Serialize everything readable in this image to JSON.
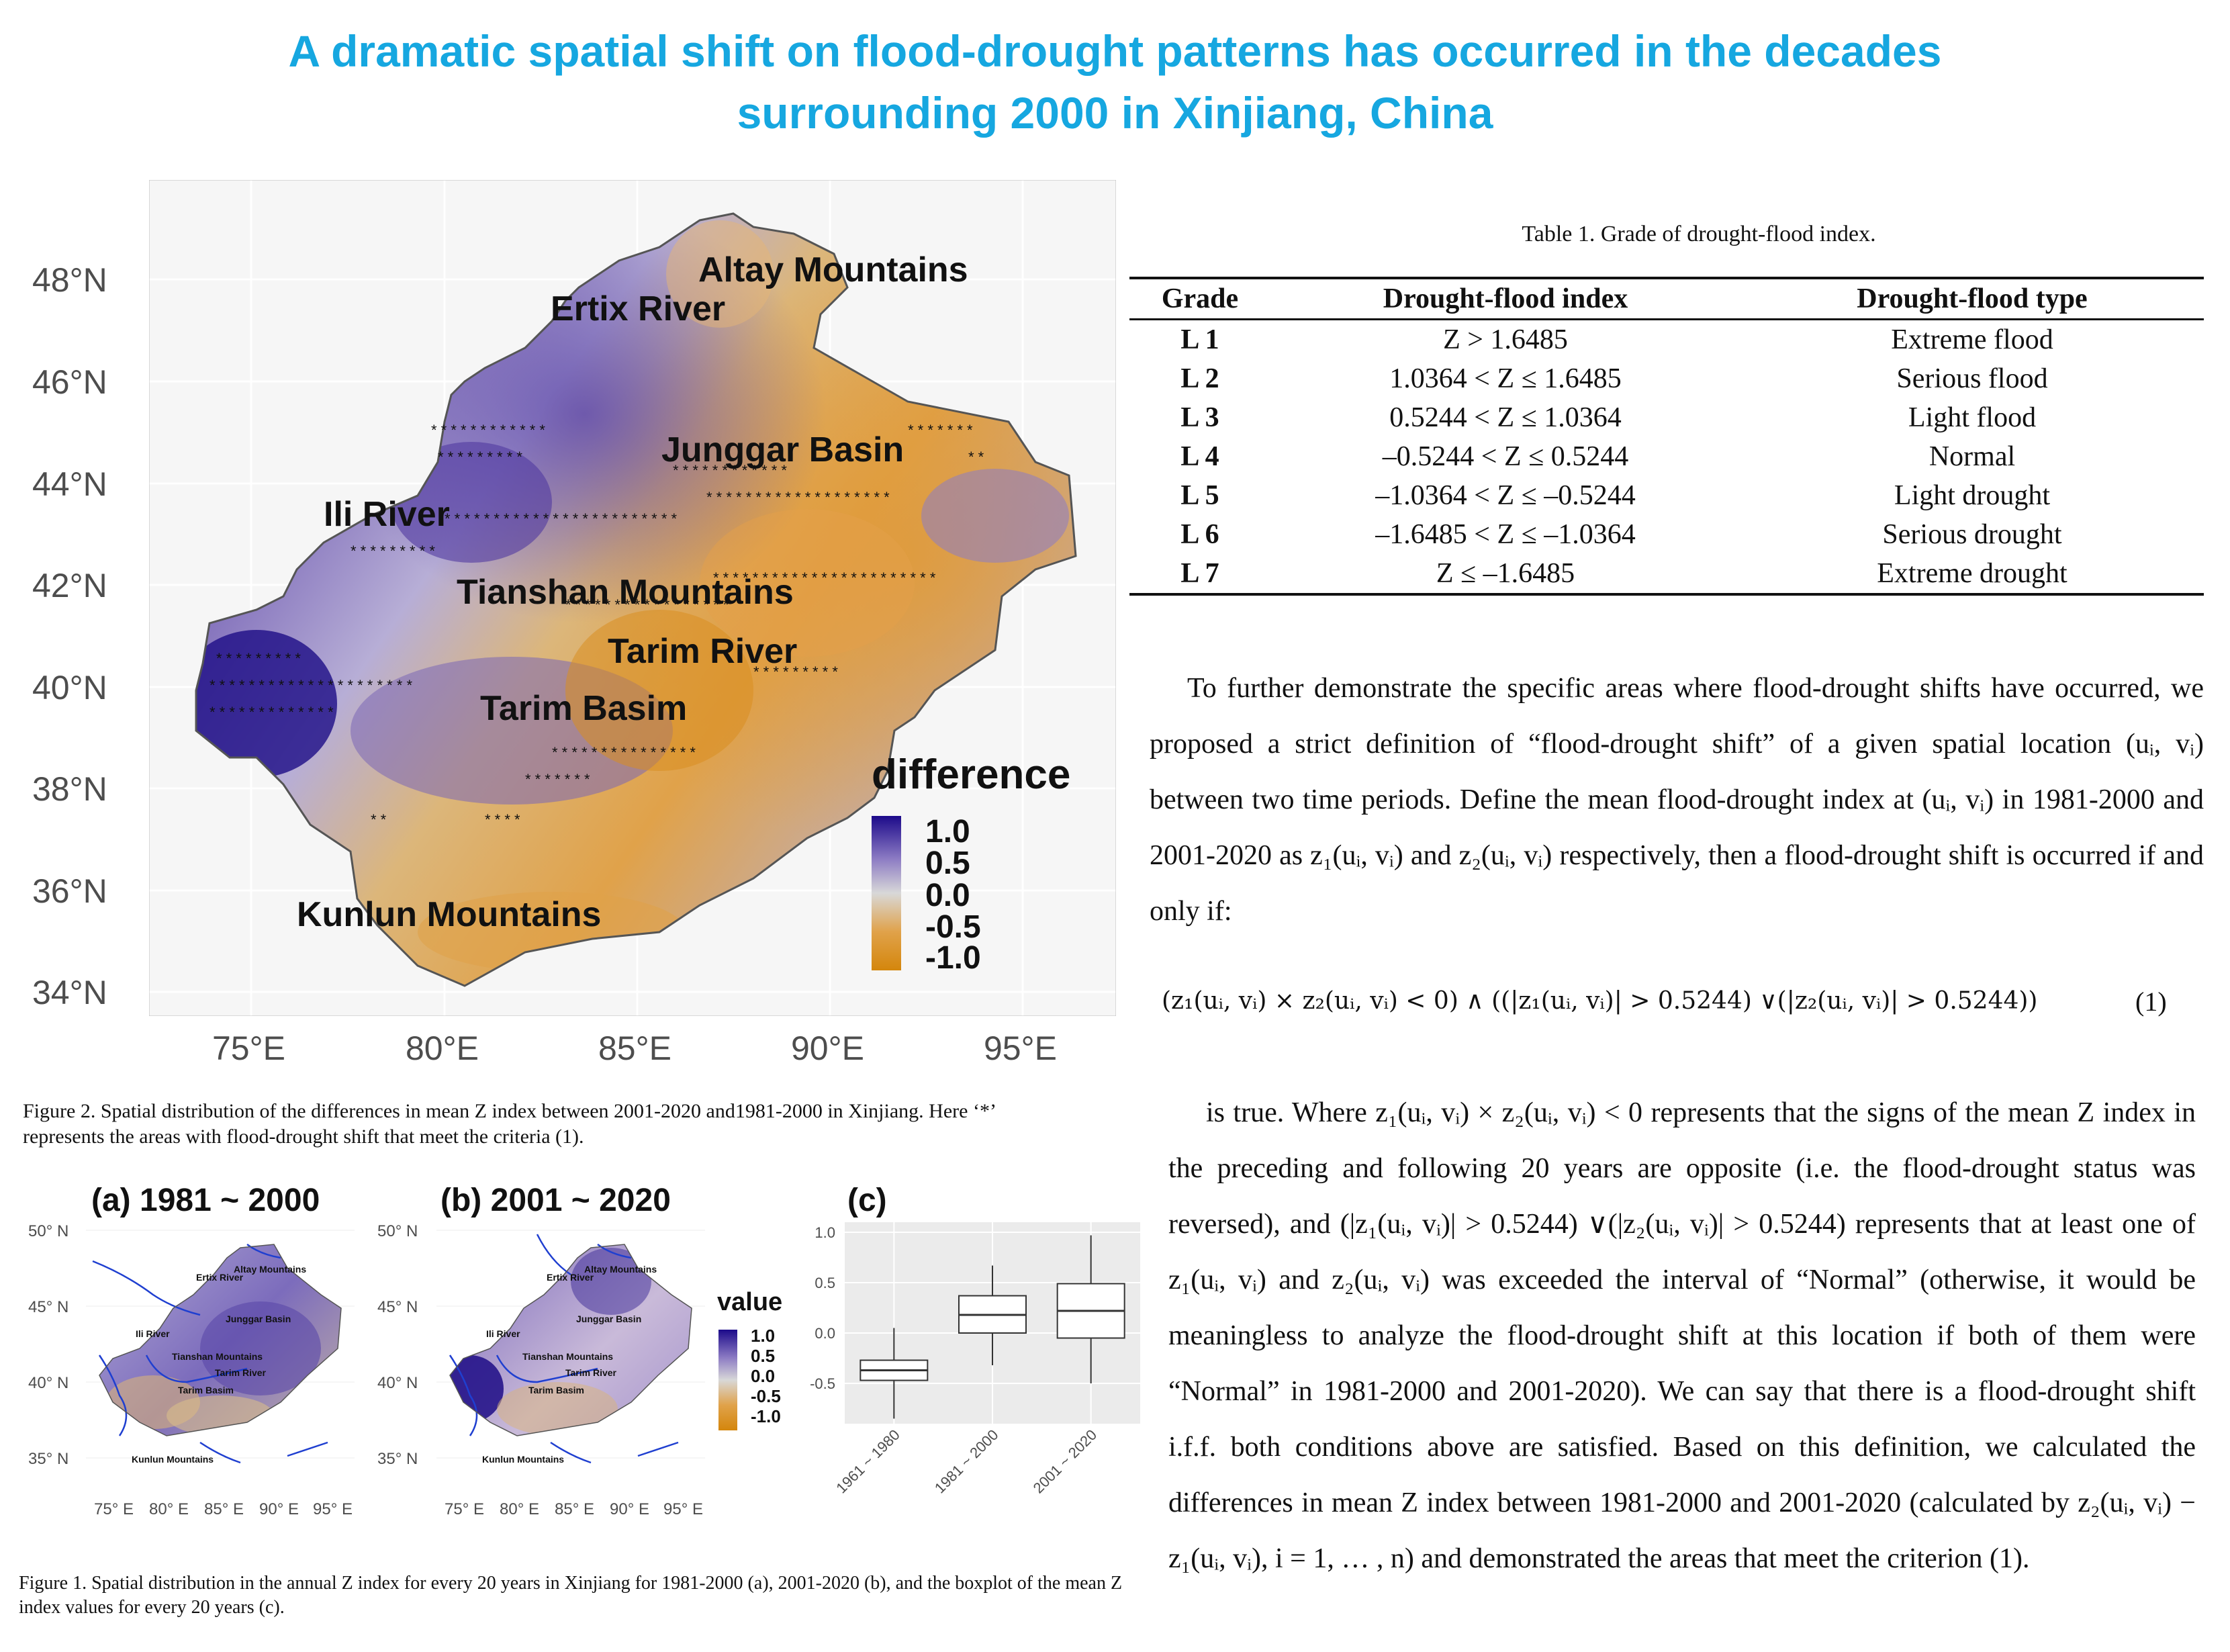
{
  "title": {
    "line1": "A dramatic spatial shift on flood-drought patterns has occurred in the decades",
    "line2": "surrounding 2000 in Xinjiang, China"
  },
  "fig2": {
    "y_ticks": [
      "48°N",
      "46°N",
      "44°N",
      "42°N",
      "40°N",
      "38°N",
      "36°N",
      "34°N"
    ],
    "x_ticks": [
      "75°E",
      "80°E",
      "85°E",
      "90°E",
      "95°E"
    ],
    "labels": {
      "altay": "Altay Mountains",
      "ertix": "Ertix River",
      "junggar": "Junggar Basin",
      "ili": "Ili River",
      "tianshan": "Tianshan Mountains",
      "tarim_river": "Tarim River",
      "tarim_basin": "Tarim Basim",
      "kunlun": "Kunlun Mountains"
    },
    "legend": {
      "title": "difference",
      "values": [
        "1.0",
        "0.5",
        "0.0",
        "-0.5",
        "-1.0"
      ],
      "colors": [
        "#1c0a8a",
        "#8d7cc4",
        "#d8d8d8",
        "#e0a24a",
        "#d4860c"
      ]
    },
    "caption": "Figure 2. Spatial distribution of the differences in mean Z index between 2001-2020 and1981-2000 in Xinjiang. Here ‘*’ represents the areas with flood-drought shift that meet the criteria (1)."
  },
  "fig1": {
    "panel_a_title": "(a) 1981 ~ 2000",
    "panel_b_title": "(b) 2001 ~ 2020",
    "panel_c_title": "(c)",
    "y_ticks": [
      "50° N",
      "45° N",
      "40° N",
      "35° N"
    ],
    "x_ticks": [
      "75° E",
      "80° E",
      "85° E",
      "90° E",
      "95° E"
    ],
    "map_labels": {
      "altay": "Altay Mountains",
      "ertix": "Ertix River",
      "junggar": "Junggar Basin",
      "ili": "Ili River",
      "tianshan": "Tianshan Mountains",
      "tarim_river": "Tarim River",
      "tarim_basin": "Tarim Basim",
      "kunlun": "Kunlun Mountains"
    },
    "legend": {
      "title": "value",
      "values": [
        "1.0",
        "0.5",
        "0.0",
        "-0.5",
        "-1.0"
      ]
    },
    "caption": "Figure 1. Spatial distribution in the annual Z index for every 20 years in Xinjiang for 1981-2000 (a), 2001-2020 (b), and the boxplot of the mean Z index values for every 20 years (c)."
  },
  "chart_data": {
    "type": "boxplot",
    "categories": [
      "1961 ~ 1980",
      "1981 ~ 2000",
      "2001 ~ 2020"
    ],
    "ylim": [
      -0.9,
      1.1
    ],
    "y_ticks": [
      "1.0",
      "0.5",
      "0.0",
      "-0.5"
    ],
    "y_tick_values": [
      1.0,
      0.5,
      0.0,
      -0.5
    ],
    "boxes": [
      {
        "min": -0.85,
        "q1": -0.47,
        "median": -0.37,
        "q3": -0.27,
        "max": 0.05
      },
      {
        "min": -0.32,
        "q1": 0.0,
        "median": 0.18,
        "q3": 0.37,
        "max": 0.67
      },
      {
        "min": -0.5,
        "q1": -0.05,
        "median": 0.22,
        "q3": 0.49,
        "max": 0.97
      }
    ]
  },
  "table1": {
    "caption": "Table 1. Grade of drought-flood index.",
    "headers": [
      "Grade",
      "Drought-flood index",
      "Drought-flood type"
    ],
    "rows": [
      [
        "L 1",
        "Z > 1.6485",
        "Extreme flood"
      ],
      [
        "L 2",
        "1.0364 < Z ≤ 1.6485",
        "Serious flood"
      ],
      [
        "L 3",
        "0.5244 < Z ≤ 1.0364",
        "Light flood"
      ],
      [
        "L 4",
        "–0.5244 < Z ≤ 0.5244",
        "Normal"
      ],
      [
        "L 5",
        "–1.0364 < Z ≤ –0.5244",
        "Light drought"
      ],
      [
        "L 6",
        "–1.6485 < Z ≤ –1.0364",
        "Serious drought"
      ],
      [
        "L 7",
        "Z ≤ –1.6485",
        "Extreme drought"
      ]
    ]
  },
  "text": {
    "p1": "To further demonstrate the specific areas where flood-drought shifts have occurred, we proposed a strict definition of “flood-drought shift” of a given spatial location (uᵢ, vᵢ) between two time periods. Define the mean flood-drought index at (uᵢ, vᵢ) in 1981-2000 and 2001-2020 as z₁(uᵢ, vᵢ) and z₂(uᵢ, vᵢ) respectively, then a flood-drought shift is occurred if and only if:",
    "equation": "(z₁(uᵢ, vᵢ) × z₂(uᵢ, vᵢ) < 0) ∧ ((|z₁(uᵢ, vᵢ)| > 0.5244) ∨(|z₂(uᵢ, vᵢ)| > 0.5244))",
    "equation_number": "(1)",
    "p2": "is true. Where z₁(uᵢ, vᵢ) × z₂(uᵢ, vᵢ) < 0 represents that the signs of  the mean Z index in the preceding and following 20 years are opposite (i.e. the flood-drought status was reversed), and (|z₁(uᵢ, vᵢ)| > 0.5244) ∨(|z₂(uᵢ, vᵢ)| > 0.5244) represents that at least one of z₁(uᵢ, vᵢ) and z₂(uᵢ, vᵢ) was exceeded the interval of “Normal” (otherwise, it would be meaningless to analyze the flood-drought shift at this location if both of them were “Normal” in 1981-2000 and 2001-2020). We can say that there is a flood-drought shift i.f.f. both conditions above are satisfied.  Based on this definition, we calculated the differences in mean Z index between 1981-2000 and 2001-2020 (calculated by z₂(uᵢ, vᵢ) − z₁(uᵢ, vᵢ), i = 1, … , n) and demonstrated the areas that meet the criterion (1)."
  }
}
